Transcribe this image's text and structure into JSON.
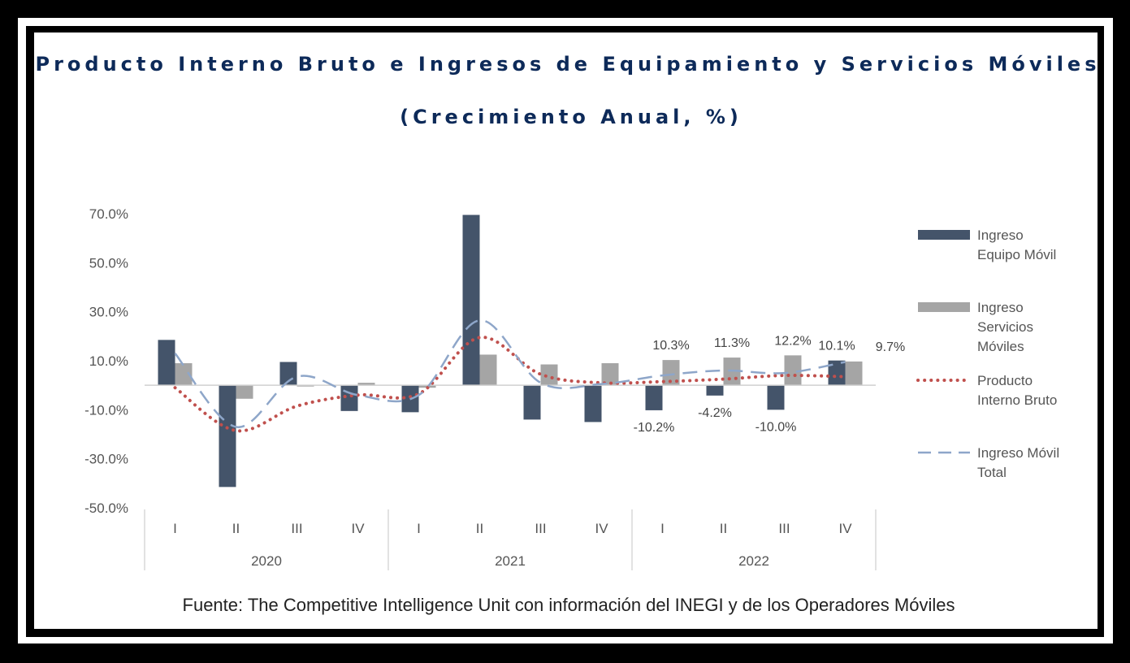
{
  "chart_data": {
    "type": "bar",
    "title": "Producto Interno Bruto e Ingresos de Equipamiento y Servicios Móviles",
    "subtitle": "(Crecimiento Anual, %)",
    "source": "Fuente: The Competitive Intelligence Unit con información del INEGI y de los Operadores Móviles",
    "categories": [
      "I",
      "II",
      "III",
      "IV",
      "I",
      "II",
      "III",
      "IV",
      "I",
      "II",
      "III",
      "IV"
    ],
    "groups": [
      {
        "label": "2020",
        "start": 0,
        "end": 3
      },
      {
        "label": "2021",
        "start": 4,
        "end": 7
      },
      {
        "label": "2022",
        "start": 8,
        "end": 11
      }
    ],
    "y_ticks": [
      {
        "value": 70,
        "label": "70.0%"
      },
      {
        "value": 50,
        "label": "50.0%"
      },
      {
        "value": 30,
        "label": "30.0%"
      },
      {
        "value": 10,
        "label": "10.0%"
      },
      {
        "value": -10,
        "label": "-10.0%"
      },
      {
        "value": -30,
        "label": "-30.0%"
      },
      {
        "value": -50,
        "label": "-50.0%"
      }
    ],
    "ylim": [
      -50,
      70
    ],
    "series": [
      {
        "name": "Ingreso Equipo Móvil",
        "kind": "bar",
        "color": "#44546a",
        "values": [
          18.5,
          -41.5,
          9.5,
          -10.5,
          -11,
          69.5,
          -14,
          -15,
          -10.2,
          -4.2,
          -10.0,
          10.1
        ],
        "labels": [
          "",
          "",
          "",
          "",
          "",
          "",
          "",
          "",
          "-10.2%",
          "-4.2%",
          "-10.0%",
          "10.1%"
        ]
      },
      {
        "name": "Ingreso Servicios Móviles",
        "kind": "bar",
        "color": "#a5a5a5",
        "values": [
          9,
          -5.5,
          -0.5,
          1,
          -1,
          12.5,
          8.5,
          9,
          10.3,
          11.3,
          12.2,
          9.7
        ],
        "labels": [
          "",
          "",
          "",
          "",
          "",
          "",
          "",
          "",
          "10.3%",
          "11.3%",
          "12.2%",
          "9.7%"
        ]
      },
      {
        "name": "Producto Interno Bruto",
        "kind": "line-dotted",
        "color": "#c0504d",
        "values": [
          -1,
          -18.5,
          -8.5,
          -4,
          -3.5,
          19.5,
          4.5,
          1,
          1.5,
          2.5,
          4,
          3.5
        ]
      },
      {
        "name": "Ingreso Móvil Total",
        "kind": "line-dashed",
        "color": "#8ea6c9",
        "values": [
          13,
          -17,
          3.5,
          -4,
          -4,
          26.5,
          1,
          0.5,
          4,
          6,
          5,
          9.5
        ]
      }
    ],
    "legend": {
      "position": "right",
      "entries": [
        {
          "lines": [
            "Ingreso",
            "Equipo Móvil"
          ]
        },
        {
          "lines": [
            "Ingreso",
            "Servicios",
            "Móviles"
          ]
        },
        {
          "lines": [
            "Producto",
            "Interno Bruto"
          ]
        },
        {
          "lines": [
            "Ingreso Móvil",
            "Total"
          ]
        }
      ]
    },
    "grid": false
  }
}
